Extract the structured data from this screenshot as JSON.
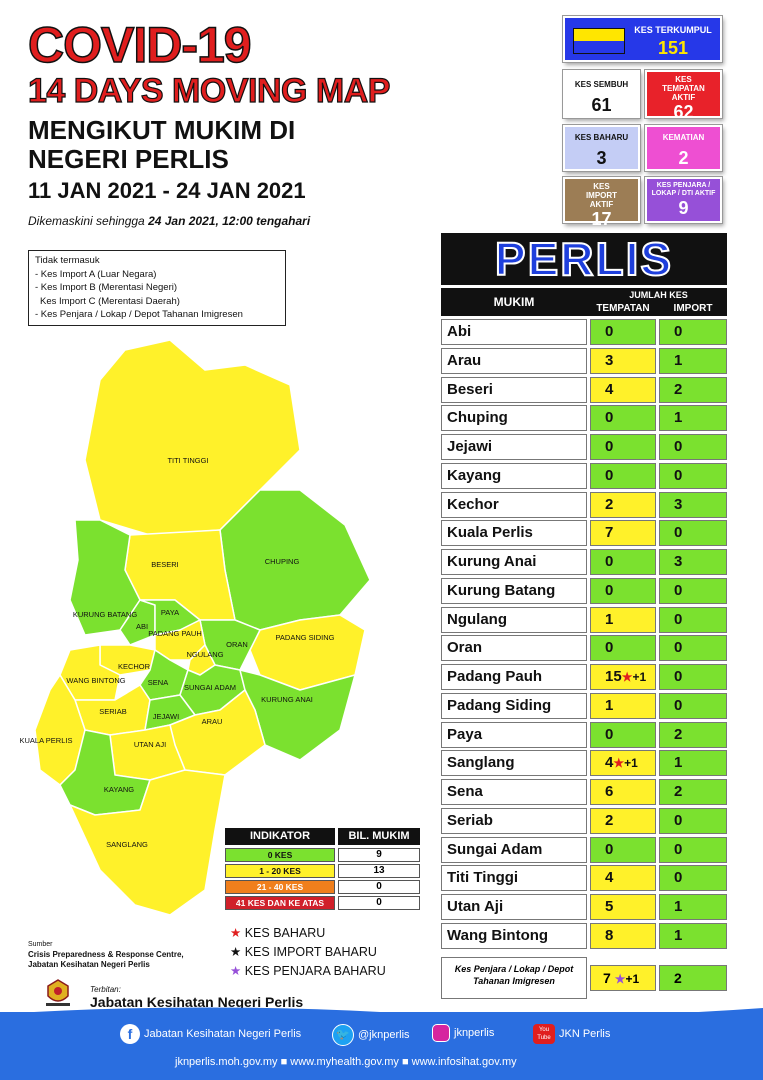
{
  "header": {
    "title1": "COVID-19",
    "title2": "14 DAYS MOVING MAP",
    "title3a": "MENGIKUT MUKIM DI",
    "title3b": "NEGERI PERLIS",
    "date_range": "11 JAN 2021 - 24 JAN 2021",
    "updated_prefix": "Dikemaskini sehingga ",
    "updated_date": "24 Jan 2021, 12:00 tengahari"
  },
  "note": {
    "lines": [
      "Tidak termasuk",
      "- Kes Import A (Luar Negara)",
      "- Kes Import B (Merentasi Negeri)",
      "  Kes Import C (Merentasi Daerah)",
      "- Kes Penjara / Lokap / Depot Tahanan Imigresen"
    ]
  },
  "stats": {
    "terkumpul": {
      "label": "KES TERKUMPUL",
      "value": "151"
    },
    "sembuh": {
      "label": "KES SEMBUH",
      "value": "61"
    },
    "tempatan_aktif": {
      "label": "KES TEMPATAN AKTIF",
      "value": "62"
    },
    "baharu": {
      "label": "KES BAHARU",
      "value": "3"
    },
    "kematian": {
      "label": "KEMATIAN",
      "value": "2"
    },
    "import_aktif": {
      "label": "KES IMPORT AKTIF",
      "value": "17"
    },
    "penjara": {
      "label": "KES PENJARA / LOKAP / DTI AKTIF",
      "value": "9"
    }
  },
  "table": {
    "state": "PERLIS",
    "col_mukim": "MUKIM",
    "col_jumlah": "JUMLAH KES",
    "col_tempatan": "TEMPATAN",
    "col_import": "IMPORT",
    "rows": [
      {
        "name": "Abi",
        "local": "0",
        "import": "0",
        "extra": ""
      },
      {
        "name": "Arau",
        "local": "3",
        "import": "1",
        "extra": ""
      },
      {
        "name": "Beseri",
        "local": "4",
        "import": "2",
        "extra": ""
      },
      {
        "name": "Chuping",
        "local": "0",
        "import": "1",
        "extra": ""
      },
      {
        "name": "Jejawi",
        "local": "0",
        "import": "0",
        "extra": ""
      },
      {
        "name": "Kayang",
        "local": "0",
        "import": "0",
        "extra": ""
      },
      {
        "name": "Kechor",
        "local": "2",
        "import": "3",
        "extra": ""
      },
      {
        "name": "Kuala Perlis",
        "local": "7",
        "import": "0",
        "extra": ""
      },
      {
        "name": "Kurung Anai",
        "local": "0",
        "import": "3",
        "extra": ""
      },
      {
        "name": "Kurung Batang",
        "local": "0",
        "import": "0",
        "extra": ""
      },
      {
        "name": "Ngulang",
        "local": "1",
        "import": "0",
        "extra": ""
      },
      {
        "name": "Oran",
        "local": "0",
        "import": "0",
        "extra": ""
      },
      {
        "name": "Padang Pauh",
        "local": "15",
        "import": "0",
        "extra": "+1"
      },
      {
        "name": "Padang Siding",
        "local": "1",
        "import": "0",
        "extra": ""
      },
      {
        "name": "Paya",
        "local": "0",
        "import": "2",
        "extra": ""
      },
      {
        "name": "Sanglang",
        "local": "4",
        "import": "1",
        "extra": "+1"
      },
      {
        "name": "Sena",
        "local": "6",
        "import": "2",
        "extra": ""
      },
      {
        "name": "Seriab",
        "local": "2",
        "import": "0",
        "extra": ""
      },
      {
        "name": "Sungai Adam",
        "local": "0",
        "import": "0",
        "extra": ""
      },
      {
        "name": "Titi Tinggi",
        "local": "4",
        "import": "0",
        "extra": ""
      },
      {
        "name": "Utan Aji",
        "local": "5",
        "import": "1",
        "extra": ""
      },
      {
        "name": "Wang Bintong",
        "local": "8",
        "import": "1",
        "extra": ""
      }
    ],
    "penjara_row": {
      "name": "Kes Penjara / Lokap / Depot Tahanan Imigresen",
      "local": "7",
      "extra": "+1",
      "import": "2"
    }
  },
  "indicator": {
    "col1": "INDIKATOR",
    "col2": "BIL. MUKIM",
    "rows": [
      {
        "label": "0 KES",
        "count": "9",
        "color": "#7be12f"
      },
      {
        "label": "1 - 20 KES",
        "count": "13",
        "color": "#fff12a"
      },
      {
        "label": "21 - 40 KES",
        "count": "0",
        "color": "#f07f1c"
      },
      {
        "label": "41 KES DAN KE ATAS",
        "count": "0",
        "color": "#d0202a"
      }
    ]
  },
  "legend": {
    "baharu": "KES BAHARU",
    "import": "KES IMPORT BAHARU",
    "penjara": "KES PENJARA BAHARU"
  },
  "map_labels": {
    "titi_tinggi": "TITI TINGGI",
    "beseri": "BESERI",
    "chuping": "CHUPING",
    "kurung_batang": "KURUNG BATANG",
    "abi": "ABI",
    "paya": "PAYA",
    "padang_pauh": "PADANG PAUH",
    "ngulang": "NGULANG",
    "oran": "ORAN",
    "padang_siding": "PADANG SIDING",
    "kechor": "KECHOR",
    "wang_bintong": "WANG BINTONG",
    "sena": "SENA",
    "sungai_adam": "SUNGAI ADAM",
    "kurung_anai": "KURUNG ANAI",
    "seriab": "SERIAB",
    "jejawi": "JEJAWI",
    "arau": "ARAU",
    "kuala_perlis": "KUALA PERLIS",
    "utan_aji": "UTAN AJI",
    "kayang": "KAYANG",
    "sanglang": "SANGLANG"
  },
  "source": {
    "label": "Sumber",
    "line1": "Crisis Preparedness & Response Centre,",
    "line2": "Jabatan Kesihatan Negeri Perlis",
    "publisher_label": "Terbitan:",
    "publisher": "Jabatan Kesihatan Negeri Perlis"
  },
  "footer": {
    "facebook": "Jabatan Kesihatan Negeri Perlis",
    "twitter": "@jknperlis",
    "instagram": "jknperlis",
    "youtube": "JKN Perlis",
    "youtube_badge": "You Tube",
    "web1": "jknperlis.moh.gov.my",
    "web2": "www.myhealth.gov.my",
    "web3": "www.infosihat.gov.my"
  },
  "colors": {
    "green": "#7be12f",
    "yellow": "#fff12a",
    "orange": "#f07f1c",
    "red": "#d0202a",
    "footer": "#2a6ee0"
  }
}
